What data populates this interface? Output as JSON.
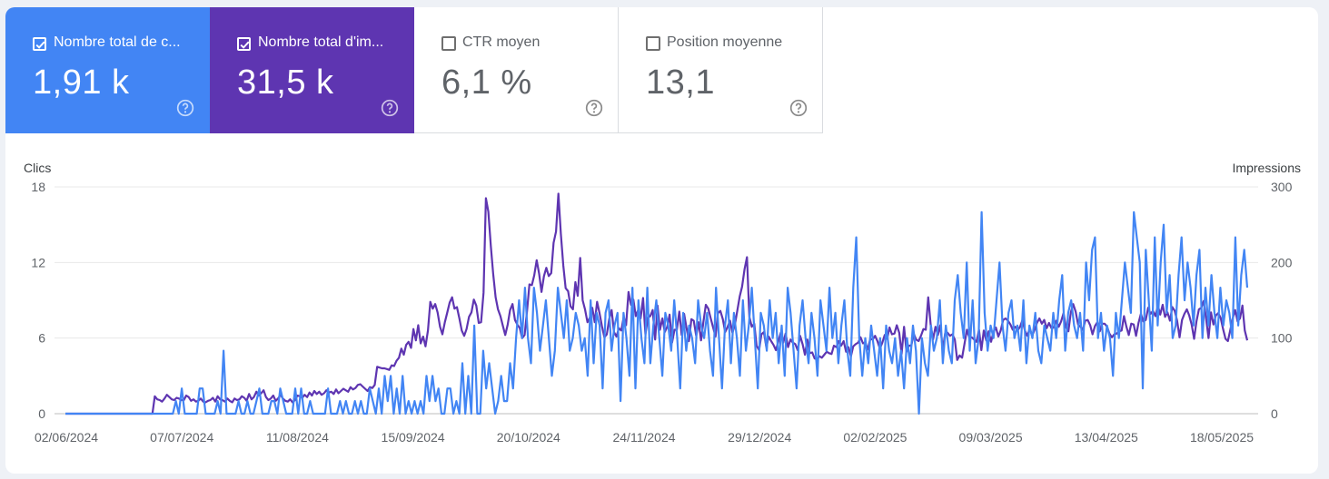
{
  "metrics": [
    {
      "label": "Nombre total de c...",
      "value": "1,91 k",
      "checked": true,
      "color": "#4285f4"
    },
    {
      "label": "Nombre total d'im...",
      "value": "31,5 k",
      "checked": true,
      "color": "#5e35b1"
    },
    {
      "label": "CTR moyen",
      "value": "6,1 %",
      "checked": false,
      "color": "#ffffff"
    },
    {
      "label": "Position moyenne",
      "value": "13,1",
      "checked": false,
      "color": "#ffffff"
    }
  ],
  "help_icon": "help-circle-icon",
  "check_icon": "checkmark-icon",
  "chart_data": {
    "type": "line",
    "ylabel_left": "Clics",
    "ylabel_right": "Impressions",
    "ylim_left": [
      0,
      18
    ],
    "ylim_right": [
      0,
      300
    ],
    "yticks_left": [
      "18",
      "12",
      "6",
      "0"
    ],
    "yticks_right": [
      "300",
      "200",
      "100",
      "0"
    ],
    "x_tick_labels": [
      "02/06/2024",
      "07/07/2024",
      "11/08/2024",
      "15/09/2024",
      "20/10/2024",
      "24/11/2024",
      "29/12/2024",
      "02/02/2025",
      "09/03/2025",
      "13/04/2025",
      "18/05/2025"
    ],
    "x_range": [
      "02/06/2024",
      "28/05/2025"
    ],
    "grid": true,
    "series": [
      {
        "name": "Nombre total de clics",
        "axis": "left",
        "color": "#4285f4",
        "values": [
          0,
          0,
          0,
          0,
          0,
          0,
          0,
          0,
          0,
          0,
          0,
          0,
          0,
          0,
          0,
          0,
          0,
          0,
          0,
          0,
          0,
          0,
          0,
          0,
          0,
          0,
          0,
          0,
          0,
          0,
          0,
          0,
          0,
          0,
          0,
          0,
          0,
          1,
          0,
          2,
          0,
          0,
          0,
          0,
          0,
          2,
          2,
          0,
          0,
          0,
          0,
          1,
          0,
          5,
          0,
          0,
          0,
          0,
          1,
          0,
          0,
          1,
          0,
          0,
          1,
          2,
          0,
          0,
          0,
          1,
          1,
          0,
          2,
          1,
          0,
          0,
          0,
          2,
          0,
          2,
          0,
          0,
          1,
          0,
          0,
          0,
          0,
          0,
          2,
          0,
          0,
          0,
          1,
          0,
          1,
          0,
          0,
          1,
          0,
          1,
          0,
          0,
          2,
          1,
          0,
          2,
          0,
          3,
          1,
          3,
          0,
          2,
          0,
          3,
          0,
          1,
          0,
          1,
          0,
          1,
          0,
          3,
          1,
          3,
          1,
          2,
          0,
          0,
          2,
          2,
          0,
          1,
          0,
          4,
          0,
          3,
          0,
          7,
          0,
          0,
          5,
          2,
          4,
          2,
          0,
          1,
          3,
          1,
          1,
          4,
          2,
          6,
          9,
          6,
          10,
          6,
          4,
          10,
          8,
          5,
          7,
          9,
          6,
          3,
          5,
          10,
          8,
          6,
          9,
          5,
          6,
          8,
          7,
          5,
          6,
          3,
          9,
          4,
          8,
          7,
          2,
          8,
          9,
          5,
          7,
          8,
          1,
          8,
          6,
          3,
          10,
          2,
          9,
          6,
          4,
          10,
          4,
          7,
          9,
          6,
          3,
          8,
          7,
          5,
          9,
          6,
          2,
          8,
          5,
          7,
          6,
          4,
          9,
          7,
          6,
          8,
          5,
          3,
          10,
          6,
          2,
          7,
          9,
          4,
          8,
          6,
          3,
          9,
          5,
          7,
          10,
          6,
          2,
          8,
          7,
          5,
          9,
          6,
          8,
          4,
          7,
          3,
          10,
          8,
          5,
          2,
          7,
          9,
          6,
          4,
          8,
          6,
          3,
          9,
          7,
          5,
          10,
          6,
          8,
          4,
          7,
          9,
          5,
          3,
          10,
          14,
          6,
          3,
          6,
          4,
          7,
          5,
          3,
          6,
          2,
          7,
          5,
          4,
          6,
          3,
          5,
          2,
          6,
          4,
          7,
          5,
          0,
          6,
          4,
          3,
          7,
          5,
          6,
          9,
          4,
          7,
          5,
          4,
          9,
          11,
          8,
          6,
          12,
          5,
          9,
          4,
          6,
          16,
          8,
          5,
          7,
          6,
          9,
          12,
          7,
          5,
          8,
          9,
          6,
          7,
          5,
          9,
          4,
          7,
          6,
          8,
          5,
          4,
          7,
          6,
          5,
          8,
          6,
          9,
          11,
          5,
          8,
          9,
          7,
          6,
          8,
          5,
          12,
          9,
          13,
          14,
          6,
          8,
          5,
          7,
          6,
          3,
          8,
          6,
          9,
          12,
          10,
          8,
          16,
          14,
          12,
          2,
          13,
          9,
          5,
          14,
          7,
          12,
          15,
          8,
          11,
          6,
          7,
          11,
          14,
          9,
          12,
          10,
          7,
          11,
          13,
          6,
          10,
          7,
          11,
          8,
          6,
          10,
          7,
          9,
          8,
          6,
          14,
          7,
          11,
          13,
          10
        ]
      },
      {
        "name": "Nombre total d'impressions",
        "axis": "right",
        "color": "#5e35b1",
        "values": [
          0,
          0,
          0,
          0,
          0,
          0,
          0,
          0,
          0,
          0,
          0,
          0,
          0,
          0,
          0,
          0,
          0,
          0,
          0,
          0,
          0,
          0,
          0,
          0,
          0,
          0,
          0,
          0,
          0,
          0,
          0,
          0,
          0,
          0,
          0,
          0,
          0,
          23,
          19,
          18,
          16,
          20,
          25,
          22,
          19,
          18,
          21,
          20,
          18,
          18,
          24,
          22,
          17,
          19,
          16,
          17,
          20,
          16,
          15,
          17,
          18,
          21,
          16,
          23,
          19,
          18,
          16,
          20,
          17,
          15,
          20,
          18,
          19,
          23,
          21,
          17,
          26,
          19,
          22,
          29,
          24,
          27,
          31,
          22,
          18,
          20,
          24,
          17,
          20,
          25,
          20,
          17,
          16,
          19,
          15,
          18,
          24,
          23,
          21,
          25,
          22,
          28,
          24,
          30,
          26,
          29,
          25,
          27,
          31,
          28,
          29,
          26,
          32,
          27,
          30,
          33,
          31,
          29,
          35,
          32,
          34,
          38,
          39,
          36,
          33,
          30,
          35,
          34,
          38,
          62,
          61,
          60,
          60,
          59,
          58,
          64,
          63,
          70,
          74,
          86,
          78,
          91,
          95,
          87,
          112,
          97,
          117,
          93,
          102,
          89,
          110,
          148,
          139,
          145,
          134,
          115,
          105,
          121,
          134,
          147,
          154,
          139,
          141,
          126,
          110,
          103,
          112,
          128,
          134,
          151,
          143,
          120,
          121,
          160,
          285,
          267,
          222,
          185,
          154,
          138,
          129,
          116,
          104,
          118,
          137,
          145,
          124,
          118,
          113,
          100,
          104,
          136,
          171,
          170,
          183,
          203,
          185,
          161,
          182,
          193,
          182,
          186,
          226,
          241,
          291,
          238,
          196,
          166,
          162,
          142,
          138,
          174,
          156,
          206,
          150,
          138,
          121,
          127,
          140,
          121,
          148,
          133,
          116,
          101,
          105,
          125,
          137,
          108,
          102,
          113,
          110,
          128,
          117,
          161,
          144,
          151,
          129,
          137,
          126,
          153,
          105,
          127,
          129,
          137,
          98,
          143,
          111,
          126,
          108,
          115,
          131,
          94,
          111,
          111,
          135,
          104,
          132,
          113,
          96,
          125,
          123,
          103,
          121,
          97,
          122,
          144,
          139,
          126,
          114,
          102,
          133,
          136,
          125,
          108,
          115,
          123,
          107,
          118,
          136,
          155,
          168,
          191,
          207,
          128,
          115,
          119,
          90,
          84,
          105,
          108,
          88,
          102,
          96,
          91,
          84,
          96,
          107,
          94,
          106,
          88,
          98,
          94,
          92,
          84,
          103,
          92,
          78,
          98,
          80,
          81,
          73,
          72,
          76,
          74,
          78,
          82,
          80,
          79,
          90,
          88,
          96,
          90,
          96,
          82,
          88,
          76,
          89,
          92,
          94,
          101,
          93,
          94,
          85,
          99,
          98,
          103,
          96,
          86,
          94,
          104,
          99,
          114,
          105,
          106,
          117,
          107,
          79,
          115,
          82,
          90,
          90,
          106,
          98,
          96,
          103,
          112,
          111,
          154,
          118,
          98,
          115,
          104,
          117,
          85,
          106,
          107,
          103,
          105,
          98,
          71,
          77,
          74,
          92,
          111,
          101,
          101,
          98,
          95,
          111,
          84,
          110,
          97,
          109,
          95,
          108,
          114,
          102,
          110,
          124,
          126,
          123,
          118,
          111,
          115,
          110,
          115,
          124,
          110,
          103,
          113,
          103,
          111,
          120,
          126,
          119,
          124,
          113,
          120,
          113,
          114,
          123,
          115,
          122,
          133,
          114,
          109,
          134,
          145,
          135,
          118,
          115,
          111,
          123,
          124,
          117,
          105,
          116,
          121,
          109,
          119,
          119,
          115,
          106,
          101,
          105,
          106,
          109,
          110,
          129,
          115,
          104,
          119,
          118,
          103,
          120,
          132,
          122,
          124,
          140,
          132,
          136,
          129,
          143,
          131,
          144,
          128,
          134,
          123,
          141,
          136,
          123,
          101,
          124,
          132,
          138,
          130,
          118,
          99,
          122,
          138,
          140,
          149,
          125,
          100,
          134,
          118,
          130,
          133,
          127,
          112,
          99,
          96,
          111,
          126,
          137,
          122,
          126,
          143,
          110,
          97
        ]
      }
    ]
  }
}
